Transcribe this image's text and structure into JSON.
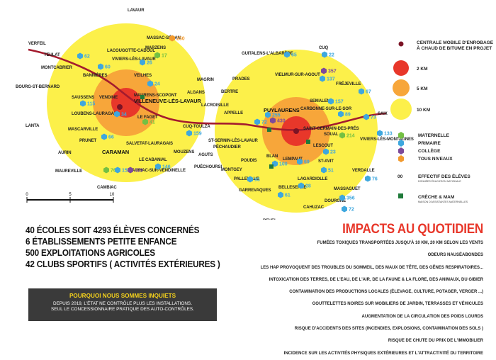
{
  "colors": {
    "ring10": "#fcf04a",
    "ring5": "#f7a63a",
    "ring2": "#e8372a",
    "route": "#a41b2e",
    "maternelle": "#74c043",
    "primaire": "#3ea7de",
    "college": "#7d4a9a",
    "tous_niveaux": "#f29a2e",
    "creche": "#1f7a3a"
  },
  "places": [
    {
      "id": "lavaur",
      "label": "LAVAUR"
    },
    {
      "id": "massac",
      "label": "MASSAC-SÉRAN"
    },
    {
      "id": "marzens",
      "label": "MARZENS"
    },
    {
      "id": "verfeil",
      "label": "VERFEIL"
    },
    {
      "id": "teulat",
      "label": "TEULAT"
    },
    {
      "id": "lacougotte",
      "label": "LACOUGOTTE-CADOUL"
    },
    {
      "id": "viviers_lav",
      "label": "VIVIERS-LÈS-LAVAUR"
    },
    {
      "id": "montcabrier",
      "label": "MONTCABRIER"
    },
    {
      "id": "bannieres",
      "label": "BANNIÈRES"
    },
    {
      "id": "veilhes",
      "label": "VEILHES"
    },
    {
      "id": "bourg",
      "label": "BOURG-ST-BERNARD"
    },
    {
      "id": "magrin",
      "label": "MAGRIN"
    },
    {
      "id": "saussens",
      "label": "SAUSSENS"
    },
    {
      "id": "vendine",
      "label": "VENDINE"
    },
    {
      "id": "maurens",
      "label": "MAURENS-SCOPONT"
    },
    {
      "id": "villeneuve",
      "label": "VILLENEUVE-LÈS-LAVAUR"
    },
    {
      "id": "algans",
      "label": "ALGANS"
    },
    {
      "id": "loubens",
      "label": "LOUBENS-LAURAGAIS"
    },
    {
      "id": "lacroisille",
      "label": "LACROISILLE"
    },
    {
      "id": "lefaget",
      "label": "LE FAGET"
    },
    {
      "id": "lanta",
      "label": "LANTA"
    },
    {
      "id": "mascarville",
      "label": "MASCARVILLE"
    },
    {
      "id": "prunet",
      "label": "PRUNET"
    },
    {
      "id": "cuq",
      "label": "CUQ-TOULZA"
    },
    {
      "id": "salvetat",
      "label": "SALVETAT-LAURAGAIS"
    },
    {
      "id": "aurin",
      "label": "AURIN"
    },
    {
      "id": "caraman",
      "label": "CARAMAN"
    },
    {
      "id": "mouzens",
      "label": "MOUZENS"
    },
    {
      "id": "agots",
      "label": "AGUTS"
    },
    {
      "id": "lecabanial",
      "label": "LE CABANIAL"
    },
    {
      "id": "maureville",
      "label": "MAUREVILLE"
    },
    {
      "id": "auriac",
      "label": "AURIAC-SUR-VENDINELLE"
    },
    {
      "id": "puechoursi",
      "label": "PUÉCHOURSI"
    },
    {
      "id": "cambiac",
      "label": "CAMBIAC"
    },
    {
      "id": "guitalens",
      "label": "GUITALENS-L'ALBARÈDE"
    },
    {
      "id": "cuqe",
      "label": "CUQ"
    },
    {
      "id": "prades",
      "label": "PRADES"
    },
    {
      "id": "vielmur",
      "label": "VIELMUR-SUR-AGOUT"
    },
    {
      "id": "frejeville",
      "label": "FRÉJEVILLE"
    },
    {
      "id": "bertre",
      "label": "BERTRE"
    },
    {
      "id": "appelle",
      "label": "APPELLE"
    },
    {
      "id": "semalens",
      "label": "SEMALENS"
    },
    {
      "id": "puylaurens",
      "label": "PUYLAURENS"
    },
    {
      "id": "carbonnes",
      "label": "CARBONNE-SUR-LE-SOR"
    },
    {
      "id": "saix",
      "label": "SAIX"
    },
    {
      "id": "stsernin",
      "label": "ST-SERNIN-LÈS-LAVAUR"
    },
    {
      "id": "pechaudier",
      "label": "PÉCHAUDIER"
    },
    {
      "id": "stgermain",
      "label": "SAINT-GERMAIN-DES-PRÉS"
    },
    {
      "id": "soual",
      "label": "SOUAL"
    },
    {
      "id": "viviers_mont",
      "label": "VIVIERS-LÈS-MONTAGNES"
    },
    {
      "id": "lescout",
      "label": "LESCOUT"
    },
    {
      "id": "poudis",
      "label": "POUDIS"
    },
    {
      "id": "blan",
      "label": "BLAN"
    },
    {
      "id": "lempaut",
      "label": "LEMPAUT"
    },
    {
      "id": "montgey",
      "label": "MONTGEY"
    },
    {
      "id": "stavit",
      "label": "ST-AVIT"
    },
    {
      "id": "verdalle",
      "label": "VERDALLE"
    },
    {
      "id": "palleville",
      "label": "PALLEVILLE"
    },
    {
      "id": "lagardiolle",
      "label": "LAGARDIOLLE"
    },
    {
      "id": "garrevaques",
      "label": "GARREVAQUES"
    },
    {
      "id": "belleserre",
      "label": "BELLESERRE"
    },
    {
      "id": "massaguet",
      "label": "MASSAGUET"
    },
    {
      "id": "dourgne",
      "label": "DOURGNE"
    },
    {
      "id": "cahuzac",
      "label": "CAHUZAC"
    },
    {
      "id": "revel",
      "label": "REVEL"
    }
  ],
  "counts": [
    {
      "id": "c250",
      "value": "250",
      "type": "tous_niveaux"
    },
    {
      "id": "c17",
      "value": "17",
      "type": "maternelle"
    },
    {
      "id": "c62",
      "value": "62",
      "type": "primaire"
    },
    {
      "id": "c26",
      "value": "26",
      "type": "primaire"
    },
    {
      "id": "c60",
      "value": "60",
      "type": "primaire"
    },
    {
      "id": "c24",
      "value": "24",
      "type": "primaire"
    },
    {
      "id": "c115",
      "value": "115",
      "type": "primaire"
    },
    {
      "id": "c34",
      "value": "34",
      "type": "primaire"
    },
    {
      "id": "c41",
      "value": "41",
      "type": "maternelle"
    },
    {
      "id": "c66",
      "value": "66",
      "type": "primaire"
    },
    {
      "id": "c159",
      "value": "159",
      "type": "primaire"
    },
    {
      "id": "c76",
      "value": "76",
      "type": "maternelle"
    },
    {
      "id": "c154",
      "value": "154",
      "type": "primaire"
    },
    {
      "id": "c429",
      "value": "429",
      "type": "college"
    },
    {
      "id": "c146",
      "value": "146",
      "type": "primaire"
    },
    {
      "id": "c65",
      "value": "65",
      "type": "primaire"
    },
    {
      "id": "c22",
      "value": "22",
      "type": "primaire"
    },
    {
      "id": "c357",
      "value": "357",
      "type": "college"
    },
    {
      "id": "c137",
      "value": "137",
      "type": "primaire"
    },
    {
      "id": "c67",
      "value": "67",
      "type": "primaire"
    },
    {
      "id": "c157",
      "value": "157",
      "type": "primaire"
    },
    {
      "id": "c89",
      "value": "89",
      "type": "primaire"
    },
    {
      "id": "c73",
      "value": "73",
      "type": "primaire"
    },
    {
      "id": "c72",
      "value": "72",
      "type": "primaire"
    },
    {
      "id": "c255",
      "value": "255",
      "type": "primaire"
    },
    {
      "id": "c430",
      "value": "430",
      "type": "college"
    },
    {
      "id": "c214",
      "value": "214",
      "type": "maternelle"
    },
    {
      "id": "c133",
      "value": "133",
      "type": "primaire"
    },
    {
      "id": "c23",
      "value": "23",
      "type": "primaire"
    },
    {
      "id": "c100",
      "value": "100",
      "type": "primaire"
    },
    {
      "id": "c69",
      "value": "69",
      "type": "primaire"
    },
    {
      "id": "c51",
      "value": "51",
      "type": "primaire"
    },
    {
      "id": "c76b",
      "value": "76",
      "type": "primaire"
    },
    {
      "id": "c95",
      "value": "95",
      "type": "primaire"
    },
    {
      "id": "c28",
      "value": "28",
      "type": "primaire"
    },
    {
      "id": "c61",
      "value": "61",
      "type": "primaire"
    },
    {
      "id": "c356",
      "value": "356",
      "type": "primaire"
    },
    {
      "id": "c72b",
      "value": "72",
      "type": "primaire"
    }
  ],
  "scale": {
    "labels": [
      "0",
      "5",
      "10"
    ]
  },
  "legend": {
    "plant": "CENTRALE MOBILE D'ENROBAGE",
    "plant2": "À CHAUD DE BITUME EN PROJET",
    "r2": "2 KM",
    "r5": "5 KM",
    "r10": "10 KM",
    "maternelle": "MATERNELLE",
    "primaire": "PRIMAIRE",
    "college": "COLLÈGE",
    "tous": "TOUS NIVEAUX",
    "eff_sym": "00",
    "eff": "EFFECTIF DES ÉLÈVES",
    "eff_src": "DONNÉES ÉDUCATION NATIONALE",
    "creche": "CRÈCHE & MAM",
    "creche_sub": "MAISON D'ASSISTANTES MATERNELLES"
  },
  "stats": [
    "40 ÉCOLES SOIT 4293 ÉLÈVES CONCERNÉS",
    "6 ÉTABLISSEMENTS PETITE ENFANCE",
    "500 EXPLOITATIONS AGRICOLES",
    "42 CLUBS SPORTIFS ( ACTIVITÉS EXTÉRIEURES )"
  ],
  "box": {
    "title": "POURQUOI NOUS SOMMES INQUIETS",
    "line1": "DEPUIS 2019, L'ÉTAT NE CONTRÔLE PLUS LES INSTALLATIONS.",
    "line2": "SEUL LE CONCESSIONNAIRE PRATIQUE DES AUTO-CONTRÔLES."
  },
  "impacts": {
    "title": "IMPACTS AU QUOTIDIEN",
    "items": [
      "FUMÉES TOXIQUES TRANSPORTÉES JUSQU'À 10 KM, 20 KM SELON LES VENTS",
      "ODEURS NAUSÉABONDES",
      "LES HAP PROVOQUENT DES TROUBLES DU SOMMEIL, DES MAUX DE TÊTE, DES GÊNES RESPIRATOIRES...",
      "INTOXICATION DES TERRES, DE L'EAU, DE L'AIR, DE LA FAUNE & LA FLORE, DES ANIMAUX, DU GIBIER",
      "CONTAMINATION DES PRODUCTIONS LOCALES (ÉLEVAGE, CULTURE, POTAGER, VERGER ...)",
      "GOUTTELETTES NOIRES SUR MOBILIERS DE JARDIN, TERRASSES ET VÉHICULES",
      "AUGMENTATION DE LA CIRCULATION DES POIDS LOURDS",
      "RISQUE D'ACCIDENTS DES SITES (INCENDIES, EXPLOSIONS, CONTAMINATION DES SOLS )",
      "RISQUE DE CHUTE DU PRIX DE L'IMMOBILIER",
      "INCIDENCE SUR LES ACTIVITÉS PHYSIQUES EXTÉRIEURES ET L'ATTRACTIVITÉ DU TERRITOIRE"
    ]
  }
}
